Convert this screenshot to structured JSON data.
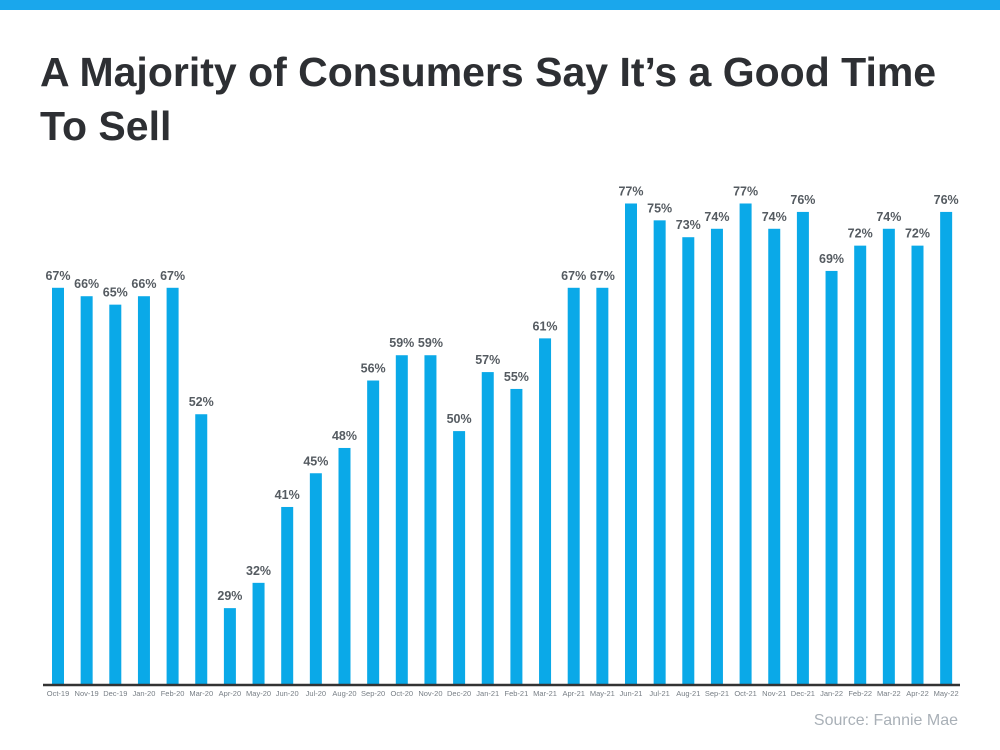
{
  "colors": {
    "bar": "#0aa9e8",
    "accent_bar": "#1aa7ec",
    "title": "#2d2f33",
    "label": "#555b61",
    "axis": "#333333"
  },
  "chart_data": {
    "type": "bar",
    "title": "A Majority of Consumers Say It’s a Good Time To Sell",
    "source": "Source: Fannie Mae",
    "xlabel": "",
    "ylabel": "",
    "ylim": [
      20,
      80
    ],
    "grid": false,
    "categories": [
      "Oct-19",
      "Nov-19",
      "Dec-19",
      "Jan-20",
      "Feb-20",
      "Mar-20",
      "Apr-20",
      "May-20",
      "Jun-20",
      "Jul-20",
      "Aug-20",
      "Sep-20",
      "Oct-20",
      "Nov-20",
      "Dec-20",
      "Jan-21",
      "Feb-21",
      "Mar-21",
      "Apr-21",
      "May-21",
      "Jun-21",
      "Jul-21",
      "Aug-21",
      "Sep-21",
      "Oct-21",
      "Nov-21",
      "Dec-21",
      "Jan-22",
      "Feb-22",
      "Mar-22",
      "Apr-22",
      "May-22"
    ],
    "values": [
      67,
      66,
      65,
      66,
      67,
      52,
      29,
      32,
      41,
      45,
      48,
      56,
      59,
      59,
      50,
      57,
      55,
      61,
      67,
      67,
      77,
      75,
      73,
      74,
      77,
      74,
      76,
      69,
      72,
      74,
      72,
      76
    ],
    "value_suffix": "%"
  }
}
